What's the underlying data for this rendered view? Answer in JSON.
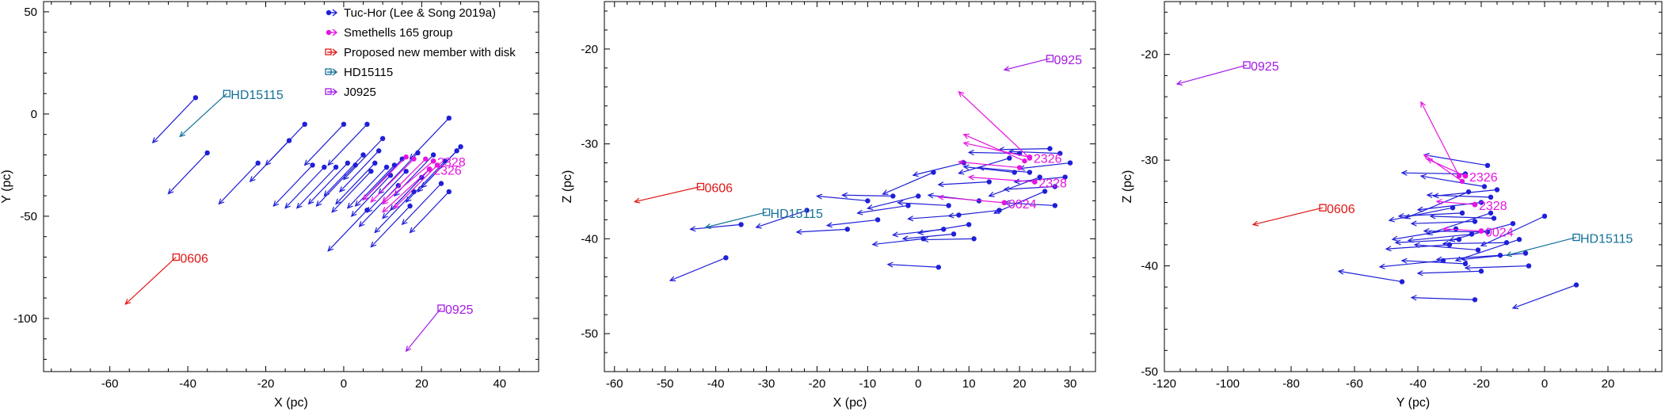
{
  "figure": {
    "colors": {
      "tuchor": "#1f1fd8",
      "smethells": "#e614e0",
      "newmember": "#e01818",
      "hd15115": "#13709a",
      "j0925": "#a41ae6"
    }
  },
  "legend": {
    "items": [
      {
        "key": "tuchor",
        "label": "Tuc-Hor (Lee & Song 2019a)",
        "color": "#1f1fd8"
      },
      {
        "key": "smethells",
        "label": "Smethells 165 group",
        "color": "#e614e0"
      },
      {
        "key": "newmember",
        "label": "Proposed new member with disk",
        "color": "#e01818"
      },
      {
        "key": "hd15115",
        "label": "HD15115",
        "color": "#13709a"
      },
      {
        "key": "j0925",
        "label": "J0925",
        "color": "#a41ae6"
      }
    ]
  },
  "chart_data": [
    {
      "type": "scatter",
      "id": "xy",
      "xlabel": "X (pc)",
      "ylabel": "Y (pc)",
      "xlim": [
        -77,
        50
      ],
      "ylim": [
        -126,
        55
      ],
      "xticks": [
        -60,
        -40,
        -20,
        0,
        20,
        40
      ],
      "yticks": [
        50,
        0,
        -50,
        -100
      ],
      "tuchor": [
        {
          "x": -38,
          "y": 8,
          "dx": -11,
          "dy": -22
        },
        {
          "x": -35,
          "y": -19,
          "dx": -10,
          "dy": -20
        },
        {
          "x": -22,
          "y": -24,
          "dx": -10,
          "dy": -20
        },
        {
          "x": -14,
          "y": -13,
          "dx": -10,
          "dy": -20
        },
        {
          "x": -10,
          "y": -5,
          "dx": -10,
          "dy": -20
        },
        {
          "x": -8,
          "y": -25,
          "dx": -10,
          "dy": -20
        },
        {
          "x": -5,
          "y": -26,
          "dx": -10,
          "dy": -20
        },
        {
          "x": -2,
          "y": -26,
          "dx": -10,
          "dy": -20
        },
        {
          "x": 0,
          "y": -5,
          "dx": -10,
          "dy": -20
        },
        {
          "x": 1,
          "y": -24,
          "dx": -10,
          "dy": -20
        },
        {
          "x": 3,
          "y": -25,
          "dx": -10,
          "dy": -20
        },
        {
          "x": 5,
          "y": -20,
          "dx": -10,
          "dy": -20
        },
        {
          "x": 6,
          "y": -5,
          "dx": -10,
          "dy": -20
        },
        {
          "x": 7,
          "y": -28,
          "dx": -10,
          "dy": -20
        },
        {
          "x": 8,
          "y": -24,
          "dx": -10,
          "dy": -20
        },
        {
          "x": 9,
          "y": -18,
          "dx": -10,
          "dy": -20
        },
        {
          "x": 10,
          "y": -12,
          "dx": -10,
          "dy": -20
        },
        {
          "x": 11,
          "y": -26,
          "dx": -10,
          "dy": -20
        },
        {
          "x": 12,
          "y": -30,
          "dx": -10,
          "dy": -20
        },
        {
          "x": 13,
          "y": -25,
          "dx": -10,
          "dy": -20
        },
        {
          "x": 14,
          "y": -35,
          "dx": -10,
          "dy": -20
        },
        {
          "x": 15,
          "y": -22,
          "dx": -10,
          "dy": -20
        },
        {
          "x": 16,
          "y": -28,
          "dx": -10,
          "dy": -20
        },
        {
          "x": 17,
          "y": -45,
          "dx": -10,
          "dy": -20
        },
        {
          "x": 18,
          "y": -38,
          "dx": -10,
          "dy": -20
        },
        {
          "x": 19,
          "y": -19,
          "dx": -10,
          "dy": -20
        },
        {
          "x": 20,
          "y": -31,
          "dx": -10,
          "dy": -20
        },
        {
          "x": 22,
          "y": -27,
          "dx": -10,
          "dy": -20
        },
        {
          "x": 23,
          "y": -20,
          "dx": -10,
          "dy": -20
        },
        {
          "x": 25,
          "y": -34,
          "dx": -10,
          "dy": -20
        },
        {
          "x": 26,
          "y": -23,
          "dx": -10,
          "dy": -20
        },
        {
          "x": 27,
          "y": -2,
          "dx": -10,
          "dy": -20
        },
        {
          "x": 27,
          "y": -38,
          "dx": -10,
          "dy": -20
        },
        {
          "x": 29,
          "y": -18,
          "dx": -10,
          "dy": -20
        },
        {
          "x": 30,
          "y": -16,
          "dx": -10,
          "dy": -20
        },
        {
          "x": 6,
          "y": -47,
          "dx": -10,
          "dy": -20
        }
      ],
      "smethells": [
        {
          "x": 16,
          "y": -21,
          "dx": -11,
          "dy": -21
        },
        {
          "x": 18,
          "y": -22,
          "dx": -11,
          "dy": -21
        },
        {
          "x": 21,
          "y": -22,
          "dx": -11,
          "dy": -21
        },
        {
          "x": 24,
          "y": -25,
          "dx": -11,
          "dy": -21
        }
      ],
      "labeled": [
        {
          "series": "smethells",
          "label": "2328",
          "x": 23,
          "y": -23,
          "dx": -13,
          "dy": -21,
          "marker": "dot"
        },
        {
          "series": "smethells",
          "label": "2326",
          "x": 22,
          "y": -27,
          "dx": -12,
          "dy": -21,
          "marker": "dot"
        },
        {
          "series": "newmember",
          "label": "0606",
          "x": -43,
          "y": -70,
          "dx": -13,
          "dy": -23,
          "marker": "square"
        },
        {
          "series": "hd15115",
          "label": "HD15115",
          "x": -30,
          "y": 10,
          "dx": -12,
          "dy": -21,
          "marker": "square"
        },
        {
          "series": "j0925",
          "label": "0925",
          "x": 25,
          "y": -95,
          "dx": -9,
          "dy": -21,
          "marker": "square"
        }
      ]
    },
    {
      "type": "scatter",
      "id": "xz",
      "xlabel": "X (pc)",
      "ylabel": "Z (pc)",
      "xlim": [
        -62,
        35
      ],
      "ylim": [
        -54,
        -15
      ],
      "xticks": [
        -60,
        -50,
        -40,
        -30,
        -20,
        -10,
        0,
        10,
        20,
        30
      ],
      "yticks": [
        -20,
        -30,
        -40,
        -50
      ],
      "tuchor": [
        {
          "x": -38,
          "y": -42,
          "dx": -11,
          "dy": -2.4
        },
        {
          "x": -35,
          "y": -38.5,
          "dx": -10,
          "dy": -0.5
        },
        {
          "x": -22,
          "y": -37,
          "dx": -10,
          "dy": -1.8
        },
        {
          "x": -14,
          "y": -39,
          "dx": -10,
          "dy": -0.3
        },
        {
          "x": -10,
          "y": -36,
          "dx": -10,
          "dy": 0.5
        },
        {
          "x": -8,
          "y": -38,
          "dx": -10,
          "dy": -0.6
        },
        {
          "x": -5,
          "y": -35.5,
          "dx": -10,
          "dy": 0.1
        },
        {
          "x": -2,
          "y": -36.5,
          "dx": -10,
          "dy": -0.8
        },
        {
          "x": 0,
          "y": -35.5,
          "dx": -10,
          "dy": -1.3
        },
        {
          "x": 1,
          "y": -40,
          "dx": -10,
          "dy": -0.6
        },
        {
          "x": 3,
          "y": -33,
          "dx": -10,
          "dy": -2.3
        },
        {
          "x": 4,
          "y": -43,
          "dx": -10,
          "dy": 0.3
        },
        {
          "x": 5,
          "y": -39,
          "dx": -10,
          "dy": -0.6
        },
        {
          "x": 6,
          "y": -36.5,
          "dx": -10,
          "dy": 0.3
        },
        {
          "x": 7,
          "y": -39.5,
          "dx": -10,
          "dy": -0.5
        },
        {
          "x": 8,
          "y": -37.5,
          "dx": -10,
          "dy": -0.4
        },
        {
          "x": 9,
          "y": -32,
          "dx": -10,
          "dy": -1.3
        },
        {
          "x": 10,
          "y": -38.5,
          "dx": -10,
          "dy": -0.9
        },
        {
          "x": 11,
          "y": -40,
          "dx": -10,
          "dy": -0.1
        },
        {
          "x": 12,
          "y": -36,
          "dx": -10,
          "dy": 0.6
        },
        {
          "x": 14,
          "y": -34,
          "dx": -10,
          "dy": -0.3
        },
        {
          "x": 16,
          "y": -37,
          "dx": -10,
          "dy": -0.6
        },
        {
          "x": 18,
          "y": -31.5,
          "dx": -10,
          "dy": -1.6
        },
        {
          "x": 19,
          "y": -33,
          "dx": -10,
          "dy": 0.6
        },
        {
          "x": 20,
          "y": -31,
          "dx": -10,
          "dy": 0.1
        },
        {
          "x": 22,
          "y": -33,
          "dx": -10,
          "dy": 0.5
        },
        {
          "x": 24,
          "y": -33.5,
          "dx": -10,
          "dy": -2.0
        },
        {
          "x": 26,
          "y": -30.5,
          "dx": -10,
          "dy": -0.1
        },
        {
          "x": 27,
          "y": -36.5,
          "dx": -10,
          "dy": 0.3
        },
        {
          "x": 28,
          "y": -31,
          "dx": -10,
          "dy": 0.2
        },
        {
          "x": 29,
          "y": -33.5,
          "dx": -10,
          "dy": -0.5
        },
        {
          "x": 30,
          "y": -32,
          "dx": -10,
          "dy": -0.6
        },
        {
          "x": 27,
          "y": -34.5,
          "dx": -10,
          "dy": -0.3
        },
        {
          "x": 25,
          "y": -35,
          "dx": -10,
          "dy": -2.3
        }
      ],
      "smethells": [
        {
          "x": 22,
          "y": -31.5,
          "dx": -14,
          "dy": 7.0
        },
        {
          "x": 21,
          "y": -31.8,
          "dx": -12,
          "dy": 2.8
        },
        {
          "x": 20,
          "y": -32.5,
          "dx": -12,
          "dy": 0.6
        }
      ],
      "labeled": [
        {
          "series": "smethells",
          "label": "2326",
          "x": 22,
          "y": -31.4,
          "dx": -13,
          "dy": 1.5,
          "marker": "dot"
        },
        {
          "series": "smethells",
          "label": "2328",
          "x": 23,
          "y": -34,
          "dx": -13,
          "dy": 0.5,
          "marker": "dot"
        },
        {
          "series": "smethells",
          "label": "0024",
          "x": 17,
          "y": -36.2,
          "dx": -13,
          "dy": 0.6,
          "marker": "dot"
        },
        {
          "series": "newmember",
          "label": "0606",
          "x": -43,
          "y": -34.5,
          "dx": -13,
          "dy": -1.6,
          "marker": "square"
        },
        {
          "series": "hd15115",
          "label": "HD15115",
          "x": -30,
          "y": -37.2,
          "dx": -12,
          "dy": -1.6,
          "marker": "square"
        },
        {
          "series": "j0925",
          "label": "0925",
          "x": 26,
          "y": -21,
          "dx": -9,
          "dy": -1.2,
          "marker": "square"
        }
      ]
    },
    {
      "type": "scatter",
      "id": "yz",
      "xlabel": "Y (pc)",
      "ylabel": "Z (pc)",
      "xlim": [
        -120,
        37
      ],
      "ylim": [
        -50,
        -15
      ],
      "xticks": [
        -120,
        -100,
        -80,
        -60,
        -40,
        -20,
        0,
        20
      ],
      "yticks": [
        -20,
        -30,
        -40,
        -50
      ],
      "tuchor": [
        {
          "x": 10,
          "y": -41.8,
          "dx": -20,
          "dy": -2.2
        },
        {
          "x": -22,
          "y": -43.2,
          "dx": -20,
          "dy": 0.2
        },
        {
          "x": -45,
          "y": -41.5,
          "dx": -20,
          "dy": 1.0
        },
        {
          "x": -5,
          "y": -40,
          "dx": -20,
          "dy": -0.2
        },
        {
          "x": -6,
          "y": -38.8,
          "dx": -20,
          "dy": -0.6
        },
        {
          "x": 0,
          "y": -35.3,
          "dx": -20,
          "dy": -2.8
        },
        {
          "x": -8,
          "y": -37.5,
          "dx": -20,
          "dy": -2.0
        },
        {
          "x": -10,
          "y": -36,
          "dx": -20,
          "dy": -1.6
        },
        {
          "x": -12,
          "y": -37.8,
          "dx": -20,
          "dy": -0.1
        },
        {
          "x": -14,
          "y": -39,
          "dx": -20,
          "dy": -0.4
        },
        {
          "x": -16,
          "y": -35.5,
          "dx": -20,
          "dy": 0.2
        },
        {
          "x": -17,
          "y": -33.5,
          "dx": -20,
          "dy": 0.2
        },
        {
          "x": -18,
          "y": -36.8,
          "dx": -20,
          "dy": 0.1
        },
        {
          "x": -19,
          "y": -32.5,
          "dx": -20,
          "dy": 1.0
        },
        {
          "x": -20,
          "y": -40.5,
          "dx": -20,
          "dy": -0.2
        },
        {
          "x": -21,
          "y": -38.5,
          "dx": -20,
          "dy": 0.5
        },
        {
          "x": -22,
          "y": -35.8,
          "dx": -20,
          "dy": -0.2
        },
        {
          "x": -23,
          "y": -37,
          "dx": -20,
          "dy": -0.6
        },
        {
          "x": -24,
          "y": -33,
          "dx": -20,
          "dy": -2.5
        },
        {
          "x": -25,
          "y": -39.8,
          "dx": -20,
          "dy": 0.3
        },
        {
          "x": -26,
          "y": -35,
          "dx": -20,
          "dy": -0.3
        },
        {
          "x": -27,
          "y": -37.5,
          "dx": -20,
          "dy": -0.3
        },
        {
          "x": -28,
          "y": -36.5,
          "dx": -20,
          "dy": -1.0
        },
        {
          "x": -29,
          "y": -34.5,
          "dx": -20,
          "dy": -1.2
        },
        {
          "x": -30,
          "y": -38,
          "dx": -20,
          "dy": -0.4
        },
        {
          "x": -32,
          "y": -39.5,
          "dx": -20,
          "dy": -0.6
        },
        {
          "x": -18,
          "y": -30.5,
          "dx": -20,
          "dy": 1.0
        },
        {
          "x": -15,
          "y": -32.8,
          "dx": -20,
          "dy": -0.6
        },
        {
          "x": -17,
          "y": -35,
          "dx": -20,
          "dy": -2.0
        },
        {
          "x": -20,
          "y": -34,
          "dx": -20,
          "dy": -0.7
        },
        {
          "x": -25,
          "y": -31.3,
          "dx": -20,
          "dy": 0.1
        }
      ],
      "smethells": [
        {
          "x": -27,
          "y": -31.5,
          "dx": -12,
          "dy": 7.0
        },
        {
          "x": -26,
          "y": -32,
          "dx": -12,
          "dy": 2.5
        }
      ],
      "labeled": [
        {
          "series": "smethells",
          "label": "2326",
          "x": -25,
          "y": -31.5,
          "dx": -12,
          "dy": 1.6,
          "marker": "dot"
        },
        {
          "series": "smethells",
          "label": "2328",
          "x": -22,
          "y": -34.2,
          "dx": -12,
          "dy": 0.3,
          "marker": "dot"
        },
        {
          "series": "smethells",
          "label": "0024",
          "x": -20,
          "y": -36.7,
          "dx": -12,
          "dy": 0.2,
          "marker": "dot"
        },
        {
          "series": "newmember",
          "label": "0606",
          "x": -70,
          "y": -34.5,
          "dx": -22,
          "dy": -1.6,
          "marker": "square"
        },
        {
          "series": "hd15115",
          "label": "HD15115",
          "x": 10,
          "y": -37.3,
          "dx": -22,
          "dy": -1.7,
          "marker": "square"
        },
        {
          "series": "j0925",
          "label": "0925",
          "x": -94,
          "y": -21,
          "dx": -22,
          "dy": -1.8,
          "marker": "square"
        }
      ]
    }
  ]
}
